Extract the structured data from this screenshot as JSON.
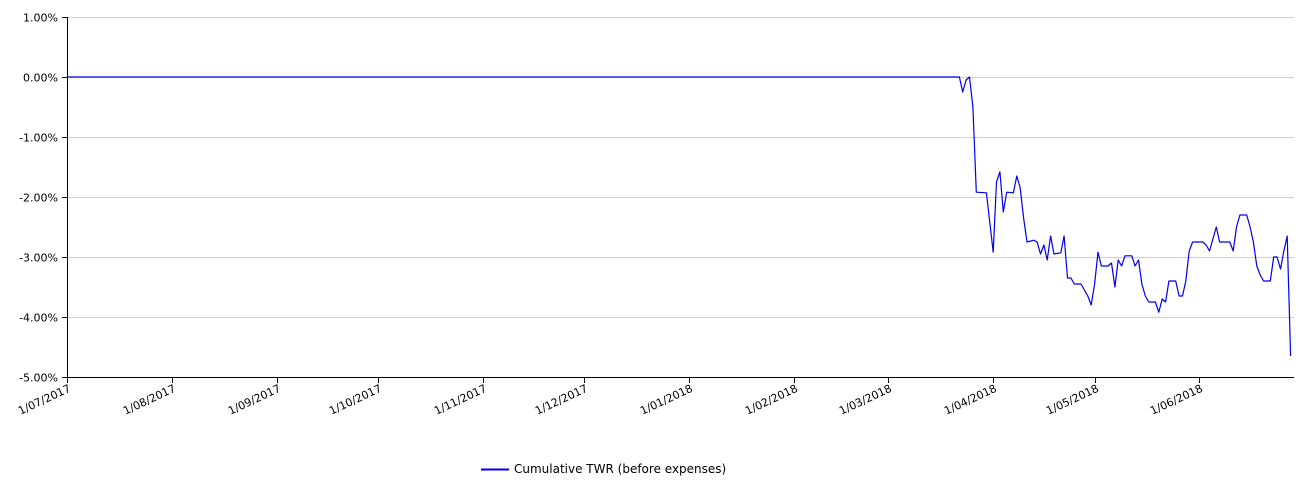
{
  "chart_data": {
    "type": "line",
    "title": "",
    "xlabel": "",
    "ylabel": "",
    "ylim": [
      -5,
      1
    ],
    "xlim": [
      "2017-07-01",
      "2018-06-29"
    ],
    "y_unit": "%",
    "y_ticks": [
      1,
      0,
      -1,
      -2,
      -3,
      -4,
      -5
    ],
    "y_tick_labels": [
      "1.00%",
      "0.00%",
      "-1.00%",
      "-2.00%",
      "-3.00%",
      "-4.00%",
      "-5.00%"
    ],
    "x_ticks": [
      "2017-07-01",
      "2017-08-01",
      "2017-09-01",
      "2017-10-01",
      "2017-11-01",
      "2017-12-01",
      "2018-01-01",
      "2018-02-01",
      "2018-03-01",
      "2018-04-01",
      "2018-05-01",
      "2018-06-01"
    ],
    "x_tick_labels": [
      "1/07/2017",
      "1/08/2017",
      "1/09/2017",
      "1/10/2017",
      "1/11/2017",
      "1/12/2017",
      "1/01/2018",
      "1/02/2018",
      "1/03/2018",
      "1/04/2018",
      "1/05/2018",
      "1/06/2018"
    ],
    "grid": "horizontal",
    "legend_position": "bottom-center",
    "series": [
      {
        "name": "Cumulative TWR (before expenses)",
        "color": "#0000ee",
        "points": [
          [
            "2017-07-01",
            0.0
          ],
          [
            "2018-03-22",
            0.0
          ],
          [
            "2018-03-23",
            -0.25
          ],
          [
            "2018-03-24",
            -0.05
          ],
          [
            "2018-03-25",
            0.0
          ],
          [
            "2018-03-26",
            -0.5
          ],
          [
            "2018-03-27",
            -1.92
          ],
          [
            "2018-03-30",
            -1.93
          ],
          [
            "2018-04-01",
            -2.92
          ],
          [
            "2018-04-02",
            -1.75
          ],
          [
            "2018-04-03",
            -1.58
          ],
          [
            "2018-04-04",
            -2.25
          ],
          [
            "2018-04-05",
            -1.92
          ],
          [
            "2018-04-07",
            -1.93
          ],
          [
            "2018-04-08",
            -1.65
          ],
          [
            "2018-04-09",
            -1.85
          ],
          [
            "2018-04-10",
            -2.35
          ],
          [
            "2018-04-11",
            -2.75
          ],
          [
            "2018-04-13",
            -2.72
          ],
          [
            "2018-04-14",
            -2.75
          ],
          [
            "2018-04-15",
            -2.95
          ],
          [
            "2018-04-16",
            -2.8
          ],
          [
            "2018-04-17",
            -3.05
          ],
          [
            "2018-04-18",
            -2.65
          ],
          [
            "2018-04-19",
            -2.95
          ],
          [
            "2018-04-21",
            -2.93
          ],
          [
            "2018-04-22",
            -2.65
          ],
          [
            "2018-04-23",
            -3.35
          ],
          [
            "2018-04-24",
            -3.35
          ],
          [
            "2018-04-25",
            -3.45
          ],
          [
            "2018-04-27",
            -3.45
          ],
          [
            "2018-04-29",
            -3.65
          ],
          [
            "2018-04-30",
            -3.8
          ],
          [
            "2018-05-01",
            -3.45
          ],
          [
            "2018-05-02",
            -2.92
          ],
          [
            "2018-05-03",
            -3.15
          ],
          [
            "2018-05-05",
            -3.15
          ],
          [
            "2018-05-06",
            -3.1
          ],
          [
            "2018-05-07",
            -3.5
          ],
          [
            "2018-05-08",
            -3.05
          ],
          [
            "2018-05-09",
            -3.15
          ],
          [
            "2018-05-10",
            -2.98
          ],
          [
            "2018-05-12",
            -2.98
          ],
          [
            "2018-05-13",
            -3.15
          ],
          [
            "2018-05-14",
            -3.05
          ],
          [
            "2018-05-15",
            -3.45
          ],
          [
            "2018-05-16",
            -3.65
          ],
          [
            "2018-05-17",
            -3.75
          ],
          [
            "2018-05-19",
            -3.75
          ],
          [
            "2018-05-20",
            -3.92
          ],
          [
            "2018-05-21",
            -3.7
          ],
          [
            "2018-05-22",
            -3.75
          ],
          [
            "2018-05-23",
            -3.4
          ],
          [
            "2018-05-25",
            -3.4
          ],
          [
            "2018-05-26",
            -3.65
          ],
          [
            "2018-05-27",
            -3.65
          ],
          [
            "2018-05-28",
            -3.4
          ],
          [
            "2018-05-29",
            -2.9
          ],
          [
            "2018-05-30",
            -2.75
          ],
          [
            "2018-06-02",
            -2.75
          ],
          [
            "2018-06-03",
            -2.8
          ],
          [
            "2018-06-04",
            -2.9
          ],
          [
            "2018-06-05",
            -2.7
          ],
          [
            "2018-06-06",
            -2.5
          ],
          [
            "2018-06-07",
            -2.75
          ],
          [
            "2018-06-10",
            -2.75
          ],
          [
            "2018-06-11",
            -2.9
          ],
          [
            "2018-06-12",
            -2.5
          ],
          [
            "2018-06-13",
            -2.3
          ],
          [
            "2018-06-15",
            -2.3
          ],
          [
            "2018-06-16",
            -2.5
          ],
          [
            "2018-06-17",
            -2.75
          ],
          [
            "2018-06-18",
            -3.15
          ],
          [
            "2018-06-19",
            -3.3
          ],
          [
            "2018-06-20",
            -3.4
          ],
          [
            "2018-06-22",
            -3.4
          ],
          [
            "2018-06-23",
            -3.0
          ],
          [
            "2018-06-24",
            -3.0
          ],
          [
            "2018-06-25",
            -3.2
          ],
          [
            "2018-06-26",
            -2.9
          ],
          [
            "2018-06-27",
            -2.65
          ],
          [
            "2018-06-28",
            -4.65
          ]
        ]
      }
    ]
  }
}
